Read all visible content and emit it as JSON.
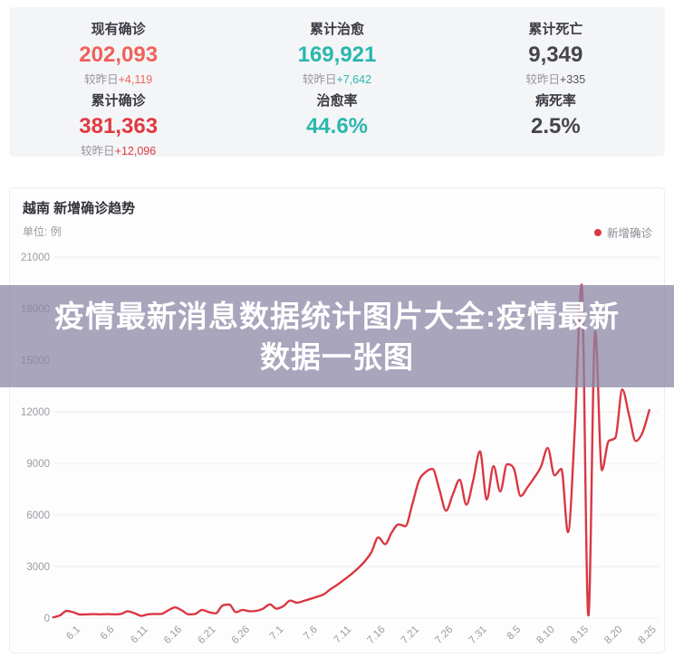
{
  "stats": {
    "cards": [
      {
        "label": "现有确诊",
        "value": "202,093",
        "delta_prefix": "较昨日",
        "delta": "+4,119",
        "value_color": "#ee615a",
        "delta_color": "#ee615a"
      },
      {
        "label": "累计治愈",
        "value": "169,921",
        "delta_prefix": "较昨日",
        "delta": "+7,642",
        "value_color": "#2ab7ae",
        "delta_color": "#2ab7ae"
      },
      {
        "label": "累计死亡",
        "value": "9,349",
        "delta_prefix": "较昨日",
        "delta": "+335",
        "value_color": "#45454e",
        "delta_color": "#55555e"
      },
      {
        "label": "累计确诊",
        "value": "381,363",
        "delta_prefix": "较昨日",
        "delta": "+12,096",
        "value_color": "#e03a40",
        "delta_color": "#e03a40"
      },
      {
        "label": "治愈率",
        "value": "44.6%",
        "delta_prefix": "",
        "delta": "",
        "value_color": "#2ab7ae",
        "delta_color": "#96969e"
      },
      {
        "label": "病死率",
        "value": "2.5%",
        "delta_prefix": "",
        "delta": "",
        "value_color": "#45454e",
        "delta_color": "#96969e"
      }
    ]
  },
  "chart": {
    "title": "越南 新增确诊趋势",
    "unit_label": "单位: 例",
    "legend": {
      "label": "新增确诊",
      "color": "#da3842"
    },
    "line_color": "#da3842",
    "grid_color": "#ededf0",
    "axis_text_color": "#9a9aa2"
  },
  "watermark": {
    "line1": "疫情最新消息数据统计图片大全:疫情最新",
    "line2": "数据一张图",
    "bg": "rgba(137,133,166,0.74)",
    "text_color": "#ffffff"
  },
  "chart_data": {
    "type": "line",
    "title": "越南 新增确诊趋势",
    "unit": "例",
    "series_name": "新增确诊",
    "legend_position": "top-right",
    "grid": true,
    "ylim": [
      0,
      21000
    ],
    "yticks": [
      0,
      3000,
      6000,
      9000,
      12000,
      15000,
      18000,
      21000
    ],
    "x_tick_labels": [
      "6.1",
      "6.6",
      "6.11",
      "6.16",
      "6.21",
      "6.26",
      "7.1",
      "7.6",
      "7.11",
      "7.16",
      "7.21",
      "7.26",
      "7.31",
      "8.5",
      "8.10",
      "8.15",
      "8.20",
      "8.25"
    ],
    "x_tick_interval_days": 5,
    "lead_in_days": 3,
    "dates": [
      "5.29",
      "5.30",
      "5.31",
      "6.1",
      "6.2",
      "6.3",
      "6.4",
      "6.5",
      "6.6",
      "6.7",
      "6.8",
      "6.9",
      "6.10",
      "6.11",
      "6.12",
      "6.13",
      "6.14",
      "6.15",
      "6.16",
      "6.17",
      "6.18",
      "6.19",
      "6.20",
      "6.21",
      "6.22",
      "6.23",
      "6.24",
      "6.25",
      "6.26",
      "6.27",
      "6.28",
      "6.29",
      "6.30",
      "7.1",
      "7.2",
      "7.3",
      "7.4",
      "7.5",
      "7.6",
      "7.7",
      "7.8",
      "7.9",
      "7.10",
      "7.11",
      "7.12",
      "7.13",
      "7.14",
      "7.15",
      "7.16",
      "7.17",
      "7.18",
      "7.19",
      "7.20",
      "7.21",
      "7.22",
      "7.23",
      "7.24",
      "7.25",
      "7.26",
      "7.27",
      "7.28",
      "7.29",
      "7.30",
      "7.31",
      "8.1",
      "8.2",
      "8.3",
      "8.4",
      "8.5",
      "8.6",
      "8.7",
      "8.8",
      "8.9",
      "8.10",
      "8.11",
      "8.12",
      "8.13",
      "8.14",
      "8.15",
      "8.16",
      "8.17",
      "8.18",
      "8.19",
      "8.20",
      "8.21",
      "8.22",
      "8.23",
      "8.24",
      "8.25"
    ],
    "values": [
      50,
      150,
      420,
      340,
      210,
      220,
      230,
      220,
      230,
      220,
      240,
      400,
      290,
      130,
      220,
      240,
      250,
      450,
      620,
      450,
      220,
      250,
      480,
      350,
      280,
      730,
      790,
      350,
      480,
      400,
      420,
      550,
      800,
      550,
      700,
      1020,
      900,
      1000,
      1120,
      1250,
      1400,
      1700,
      1950,
      2250,
      2550,
      2900,
      3300,
      3850,
      4700,
      4300,
      5000,
      5450,
      5350,
      6600,
      8000,
      8500,
      8680,
      7500,
      6250,
      7200,
      8050,
      6600,
      8000,
      9700,
      6900,
      8840,
      7370,
      8950,
      8700,
      7100,
      7600,
      8160,
      8800,
      9900,
      8300,
      8680,
      5000,
      11000,
      19400,
      150,
      16700,
      8600,
      10300,
      10500,
      13300,
      11800,
      10300,
      10800,
      12100
    ]
  }
}
